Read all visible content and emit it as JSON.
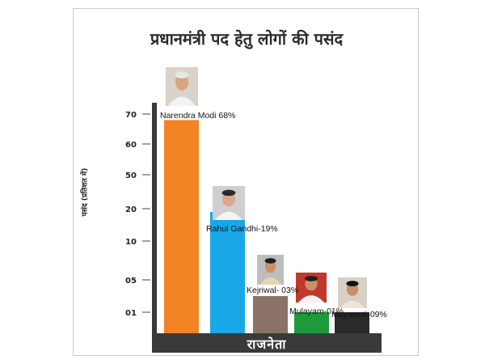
{
  "chart_data": {
    "type": "bar",
    "title": "प्रधानमंत्री पद हेतु लोगों की पसंद",
    "ylabel": "पसंद (प्रतिशत में)",
    "xlabel": "राजनेता",
    "y_ticks": [
      "70",
      "60",
      "50",
      "20",
      "10",
      "05",
      "01"
    ],
    "categories": [
      "Narendra Modi",
      "Rahul Gandhi",
      "Kejriwal",
      "Mulayam",
      "Mayawati"
    ],
    "values": [
      68,
      19,
      3,
      1,
      9
    ],
    "data_labels": [
      "Narendra Modi 68%",
      "Rahul Gandhi-19%",
      "Kejriwal- 03%",
      "Mulayam-01%",
      "Mayawati-09%"
    ],
    "colors": [
      "#f28322",
      "#1aa7e8",
      "#8b7268",
      "#1e9a3d",
      "#2a2a2a"
    ],
    "grid": false,
    "legend": "none",
    "portraits": [
      "narendra-modi-photo",
      "rahul-gandhi-photo",
      "kejriwal-photo",
      "mulayam-photo",
      "mayawati-photo"
    ]
  }
}
